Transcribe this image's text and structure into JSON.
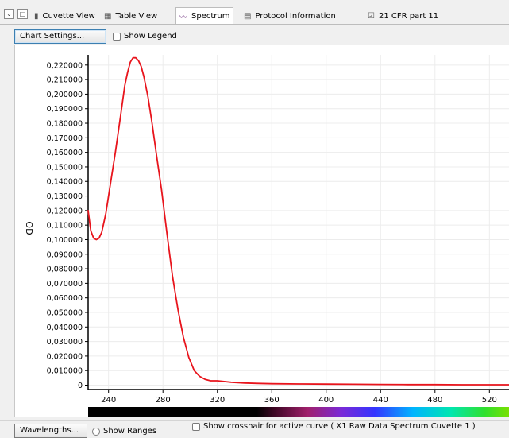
{
  "tabs": [
    {
      "label": "Cuvette View",
      "icon": "cuvette-icon",
      "active": false
    },
    {
      "label": "Table View",
      "icon": "table-icon",
      "active": false
    },
    {
      "label": "Spectrum",
      "icon": "spectrum-wave-icon",
      "active": true
    },
    {
      "label": "Protocol Information",
      "icon": "printer-icon",
      "active": false
    },
    {
      "label": "21 CFR part 11",
      "icon": "checkbox-icon",
      "active": false
    }
  ],
  "toolbar": {
    "chart_settings_label": "Chart Settings...",
    "show_legend_label": "Show Legend",
    "show_legend_checked": false
  },
  "bottom": {
    "wavelengths_label": "Wavelengths...",
    "show_ranges_label": "Show Ranges",
    "crosshair_label": "Show crosshair for active curve ( X1 Raw Data Spectrum Cuvette 1 )"
  },
  "colors": {
    "curve": "#e8141c",
    "grid": "#ececec",
    "axis": "#000000"
  },
  "chart_data": {
    "type": "line",
    "ylabel": "OD",
    "xlabel": "",
    "xlim": [
      225,
      535
    ],
    "ylim": [
      -0.003,
      0.227
    ],
    "grid": true,
    "legend": "hidden",
    "x_ticks": [
      "240",
      "280",
      "320",
      "360",
      "400",
      "440",
      "480",
      "520"
    ],
    "y_ticks": [
      "0",
      "0,010000",
      "0,020000",
      "0,030000",
      "0,040000",
      "0,050000",
      "0,060000",
      "0,070000",
      "0,080000",
      "0,090000",
      "0,100000",
      "0,110000",
      "0,120000",
      "0,130000",
      "0,140000",
      "0,150000",
      "0,160000",
      "0,170000",
      "0,180000",
      "0,190000",
      "0,200000",
      "0,210000",
      "0,220000"
    ],
    "series": [
      {
        "x": [
          225,
          227,
          229,
          231,
          233,
          235,
          238,
          241,
          245,
          249,
          252,
          254,
          256,
          258,
          260,
          262,
          264,
          266,
          269,
          272,
          275,
          279,
          283,
          287,
          291,
          295,
          299,
          303,
          307,
          311,
          315,
          320,
          330,
          340,
          350,
          360,
          380,
          400,
          420,
          440,
          460,
          480,
          500,
          520,
          535
        ],
        "y": [
          0.12,
          0.106,
          0.101,
          0.1,
          0.101,
          0.105,
          0.118,
          0.136,
          0.16,
          0.186,
          0.206,
          0.215,
          0.222,
          0.225,
          0.225,
          0.223,
          0.219,
          0.212,
          0.198,
          0.18,
          0.16,
          0.134,
          0.104,
          0.075,
          0.052,
          0.033,
          0.019,
          0.01,
          0.006,
          0.004,
          0.003,
          0.003,
          0.002,
          0.0015,
          0.0012,
          0.001,
          0.0008,
          0.0007,
          0.0006,
          0.0005,
          0.0004,
          0.0004,
          0.0003,
          0.0003,
          0.0003
        ]
      }
    ]
  }
}
